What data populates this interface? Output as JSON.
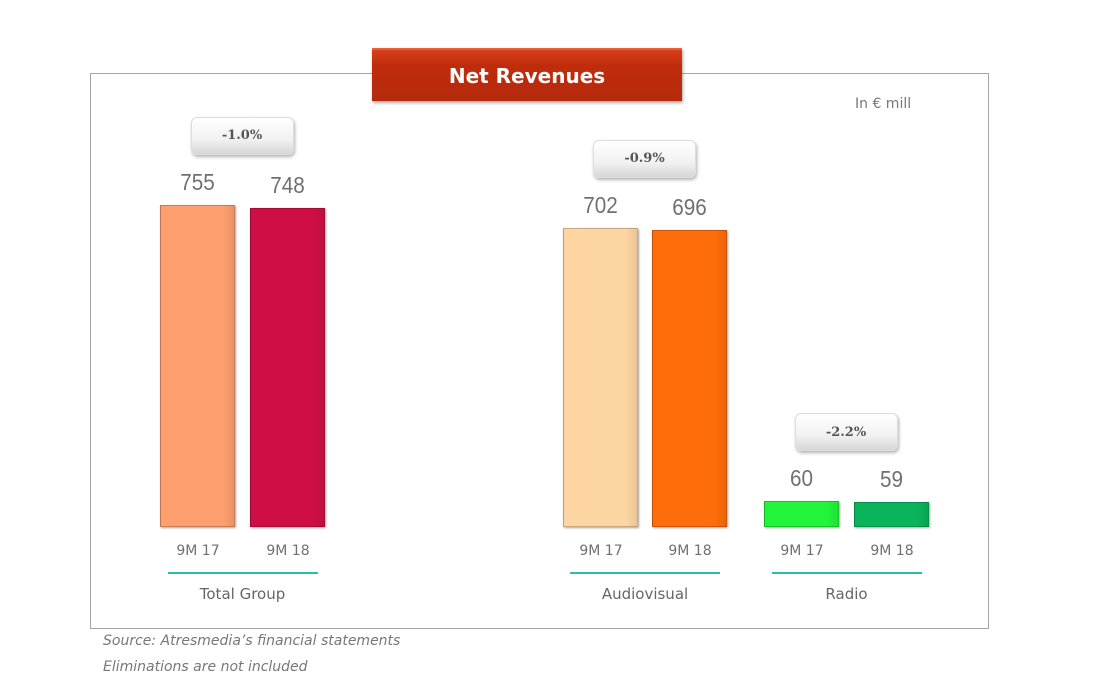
{
  "chart_data": {
    "type": "bar",
    "title": "Net Revenues",
    "unit_label": "In € mill",
    "ylim": [
      0,
      800
    ],
    "groups": [
      {
        "name": "Total Group",
        "change": "-1.0%",
        "bars": [
          {
            "period": "9M 17",
            "value": 755,
            "color": "#fd9f6e"
          },
          {
            "period": "9M 18",
            "value": 748,
            "color": "#cf0f44"
          }
        ]
      },
      {
        "name": "Audiovisual",
        "change": "-0.9%",
        "bars": [
          {
            "period": "9M 17",
            "value": 702,
            "color": "#fdd5a2"
          },
          {
            "period": "9M 18",
            "value": 696,
            "color": "#ff6c0a"
          }
        ]
      },
      {
        "name": "Radio",
        "change": "-2.2%",
        "bars": [
          {
            "period": "9M 17",
            "value": 60,
            "color": "#22f43a"
          },
          {
            "period": "9M 18",
            "value": 59,
            "color": "#09b45a"
          }
        ]
      }
    ]
  },
  "notes": [
    "Source: Atresmedia’s financial statements",
    "Eliminations are not included"
  ]
}
